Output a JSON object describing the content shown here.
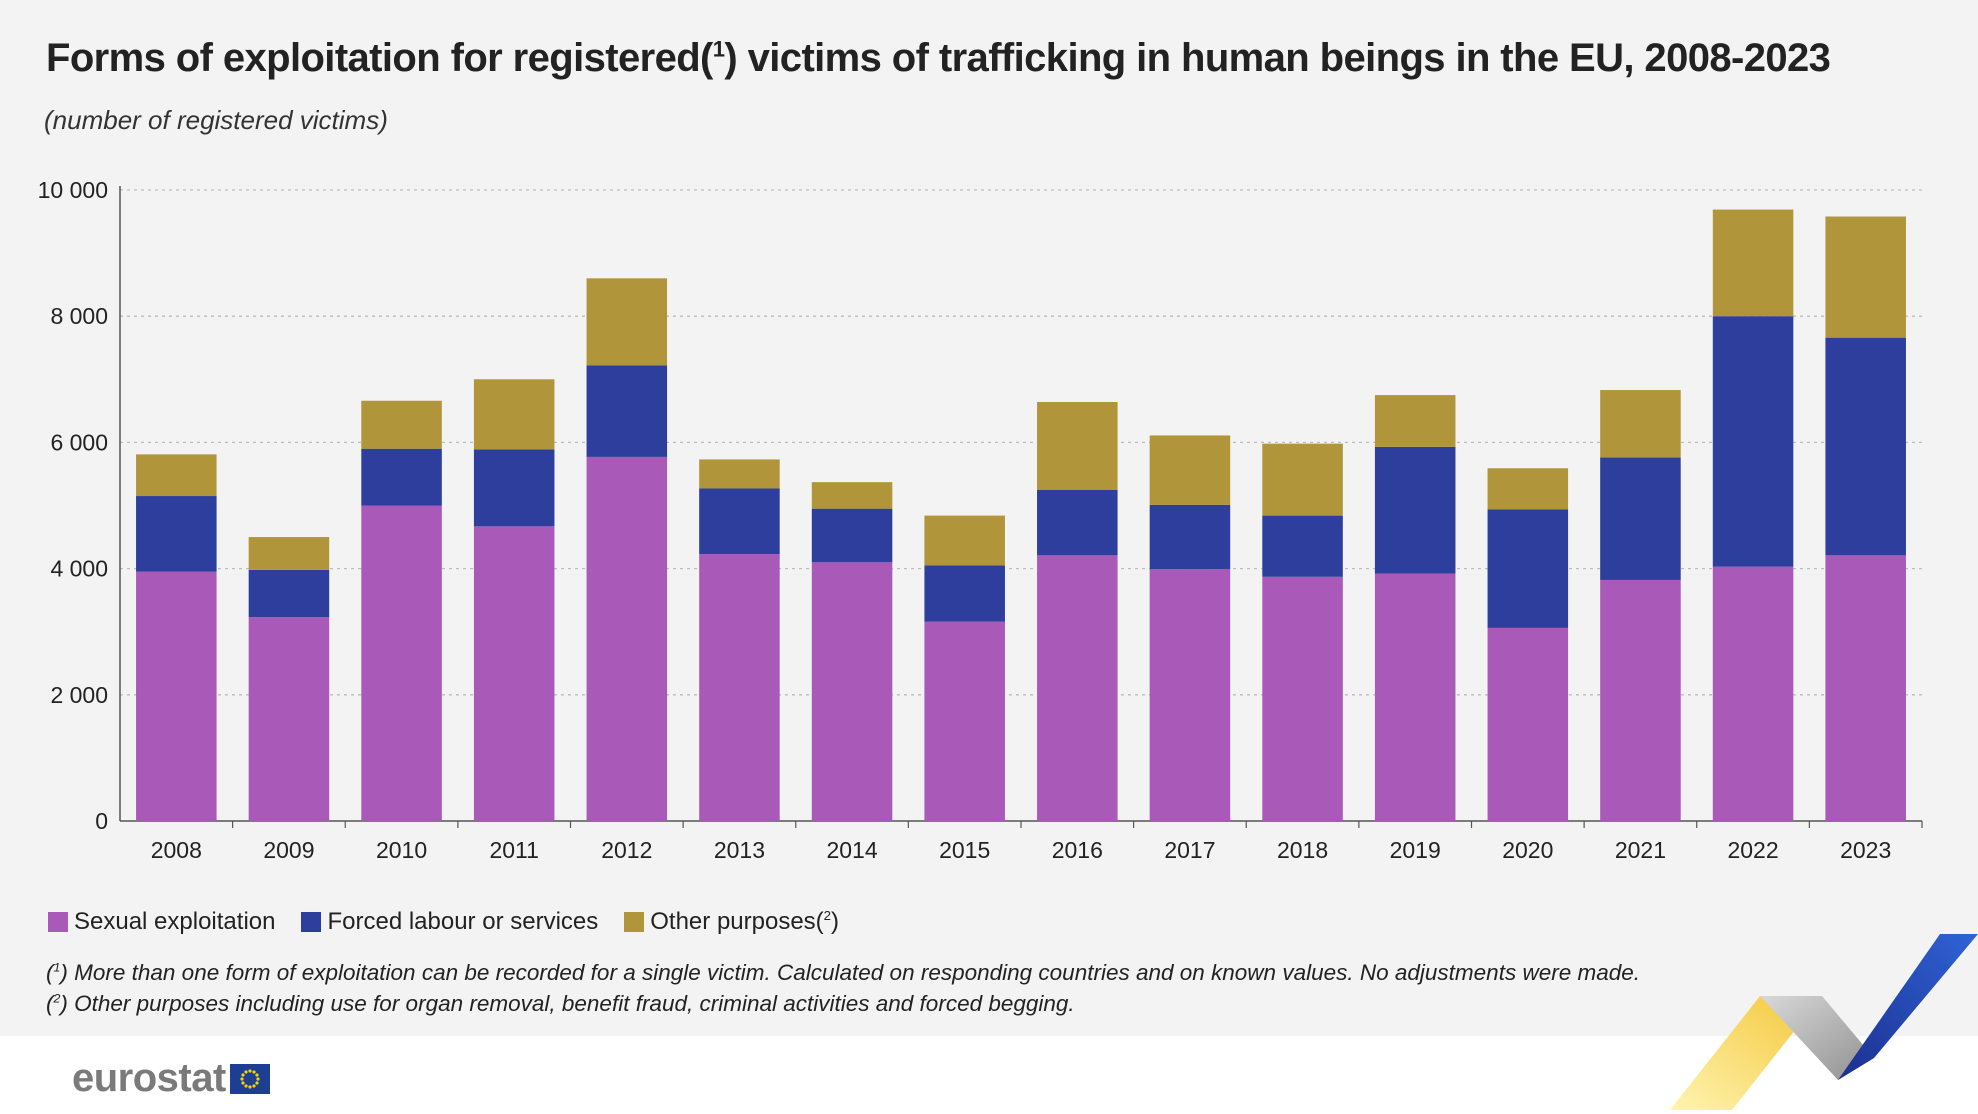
{
  "title_main": "Forms of exploitation for registered(",
  "title_sup": "1",
  "title_rest": ") victims of trafficking in human beings in the EU, 2008-2023",
  "subtitle": "(number of registered victims)",
  "chart_data": {
    "type": "bar",
    "stacked": true,
    "categories": [
      "2008",
      "2009",
      "2010",
      "2011",
      "2012",
      "2013",
      "2014",
      "2015",
      "2016",
      "2017",
      "2018",
      "2019",
      "2020",
      "2021",
      "2022",
      "2023"
    ],
    "series": [
      {
        "name": "Sexual exploitation",
        "color": "#a95ab8",
        "values": [
          3950,
          3230,
          5000,
          4670,
          5770,
          4230,
          4100,
          3160,
          4210,
          3990,
          3870,
          3920,
          3060,
          3820,
          4030,
          4210
        ]
      },
      {
        "name": "Forced labour or services",
        "color": "#2d3e9c",
        "values": [
          1200,
          750,
          900,
          1220,
          1450,
          1040,
          850,
          890,
          1040,
          1020,
          970,
          2010,
          1880,
          1940,
          3970,
          3450
        ]
      },
      {
        "name": "Other purposes",
        "color": "#b0953a",
        "values": [
          660,
          520,
          760,
          1110,
          1380,
          460,
          420,
          790,
          1390,
          1100,
          1140,
          820,
          650,
          1070,
          1690,
          1920
        ]
      }
    ],
    "ylim": [
      0,
      10000
    ],
    "yticks": [
      0,
      2000,
      4000,
      6000,
      8000,
      10000
    ],
    "ytick_labels": [
      "0",
      "2 000",
      "4 000",
      "6 000",
      "8 000",
      "10 000"
    ],
    "grid": true,
    "legend_position": "bottom-left"
  },
  "legend": {
    "items": [
      {
        "label": "Sexual exploitation",
        "sup": "",
        "color": "#a95ab8"
      },
      {
        "label": "Forced labour or services",
        "sup": "",
        "color": "#2d3e9c"
      },
      {
        "label": "Other purposes(",
        "sup": "2",
        "close": ")",
        "color": "#b0953a"
      }
    ]
  },
  "footnotes": {
    "fn1_marker": "1",
    "fn1_text": " More than one form of exploitation can be recorded for a single victim. Calculated on responding countries and on known values. No adjustments were made.",
    "fn2_marker": "2",
    "fn2_text": " Other purposes including use for organ removal, benefit fraud, criminal activities and forced begging."
  },
  "logo": {
    "text": "eurostat"
  },
  "colors": {
    "panel_bg": "#f3f3f3",
    "grid": "#bdbdbd",
    "axis": "#555555"
  }
}
